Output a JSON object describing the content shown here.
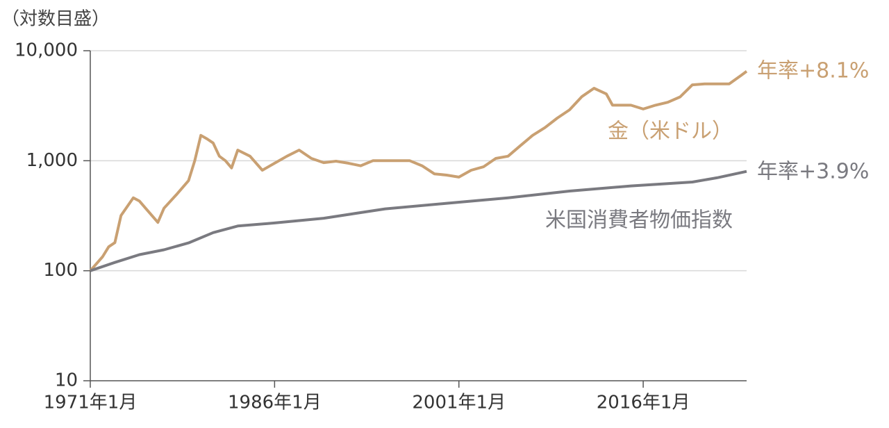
{
  "chart_data": {
    "type": "line",
    "y_axis_label": "（対数目盛）",
    "log_scale": true,
    "grid": true,
    "xlim": [
      "1971-01",
      "2024-06"
    ],
    "xticks": [
      {
        "value": "1971-01",
        "label": "1971年1月"
      },
      {
        "value": "1986-01",
        "label": "1986年1月"
      },
      {
        "value": "2001-01",
        "label": "2001年1月"
      },
      {
        "value": "2016-01",
        "label": "2016年1月"
      }
    ],
    "ylim": [
      10,
      10000
    ],
    "yticks": [
      10,
      100,
      {
        "value": 1000,
        "label": "1,000"
      },
      {
        "value": 10000,
        "label": "10,000"
      }
    ],
    "series": [
      {
        "name": "金（米ドル）",
        "color": "#c9a072",
        "end_label": "年率+8.1%",
        "x": [
          "1971-01",
          "1972-01",
          "1972-07",
          "1973-01",
          "1973-07",
          "1974-07",
          "1975-01",
          "1975-07",
          "1976-07",
          "1977-01",
          "1978-01",
          "1979-01",
          "1979-07",
          "1980-01",
          "1980-07",
          "1981-01",
          "1981-07",
          "1982-01",
          "1982-07",
          "1983-01",
          "1984-01",
          "1985-01",
          "1986-01",
          "1987-01",
          "1988-01",
          "1989-01",
          "1990-01",
          "1991-01",
          "1992-01",
          "1993-01",
          "1994-01",
          "1996-01",
          "1997-01",
          "1998-01",
          "1999-01",
          "2000-01",
          "2001-01",
          "2002-01",
          "2003-01",
          "2004-01",
          "2005-01",
          "2006-01",
          "2007-01",
          "2008-01",
          "2009-01",
          "2010-01",
          "2011-01",
          "2012-01",
          "2013-01",
          "2013-07",
          "2014-01",
          "2015-01",
          "2016-01",
          "2017-01",
          "2018-01",
          "2019-01",
          "2020-01",
          "2021-01",
          "2022-01",
          "2023-01",
          "2024-01",
          "2024-06"
        ],
        "values": [
          100,
          134,
          165,
          180,
          317,
          460,
          430,
          370,
          275,
          370,
          490,
          660,
          1000,
          1700,
          1580,
          1450,
          1100,
          1000,
          860,
          1250,
          1100,
          820,
          950,
          1100,
          1250,
          1050,
          960,
          990,
          950,
          900,
          1000,
          1000,
          1000,
          900,
          760,
          740,
          710,
          820,
          880,
          1050,
          1100,
          1370,
          1700,
          2000,
          2440,
          2900,
          3820,
          4560,
          4050,
          3200,
          3200,
          3200,
          2950,
          3200,
          3400,
          3800,
          4900,
          5000,
          5000,
          5000,
          6000,
          6500
        ]
      },
      {
        "name": "米国消費者物価指数",
        "color": "#7a7a80",
        "end_label": "年率+3.9%",
        "x": [
          "1971-01",
          "1973-01",
          "1975-01",
          "1977-01",
          "1979-01",
          "1981-01",
          "1983-01",
          "1986-01",
          "1990-01",
          "1995-01",
          "2000-01",
          "2005-01",
          "2010-01",
          "2015-01",
          "2020-01",
          "2022-01",
          "2024-06"
        ],
        "values": [
          100,
          119,
          140,
          155,
          179,
          222,
          255,
          272,
          300,
          365,
          410,
          460,
          530,
          590,
          640,
          700,
          800
        ]
      }
    ]
  }
}
